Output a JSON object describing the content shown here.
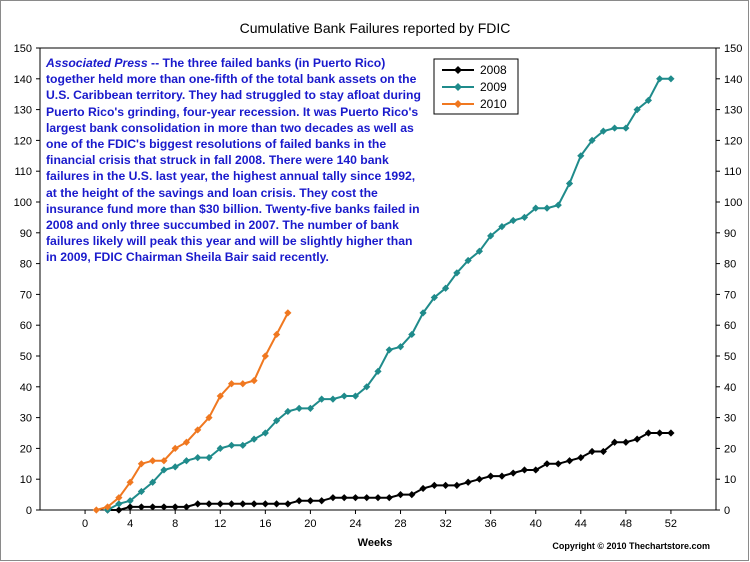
{
  "chart_data": {
    "type": "line",
    "title": "Cumulative Bank Failures reported by FDIC",
    "xlabel": "Weeks",
    "ylabel": "",
    "xlim": [
      -4,
      56
    ],
    "ylim": [
      0,
      150
    ],
    "x_ticks": [
      0,
      4,
      8,
      12,
      16,
      20,
      24,
      28,
      32,
      36,
      40,
      44,
      48,
      52
    ],
    "y_ticks": [
      0,
      10,
      20,
      30,
      40,
      50,
      60,
      70,
      80,
      90,
      100,
      110,
      120,
      130,
      140,
      150
    ],
    "legend_position": "top-center",
    "series": [
      {
        "name": "2008",
        "color": "#000000",
        "x": [
          2,
          3,
          4,
          5,
          6,
          7,
          8,
          9,
          10,
          11,
          12,
          13,
          14,
          15,
          16,
          17,
          18,
          19,
          20,
          21,
          22,
          23,
          24,
          25,
          26,
          27,
          28,
          29,
          30,
          31,
          32,
          33,
          34,
          35,
          36,
          37,
          38,
          39,
          40,
          41,
          42,
          43,
          44,
          45,
          46,
          47,
          48,
          49,
          50,
          51,
          52
        ],
        "values": [
          0,
          0,
          1,
          1,
          1,
          1,
          1,
          1,
          2,
          2,
          2,
          2,
          2,
          2,
          2,
          2,
          2,
          3,
          3,
          3,
          4,
          4,
          4,
          4,
          4,
          4,
          5,
          5,
          7,
          8,
          8,
          8,
          9,
          10,
          11,
          11,
          12,
          13,
          13,
          15,
          15,
          16,
          17,
          19,
          19,
          22,
          22,
          23,
          25,
          25,
          25
        ]
      },
      {
        "name": "2009",
        "color": "#1f8b8b",
        "x": [
          2,
          3,
          4,
          5,
          6,
          7,
          8,
          9,
          10,
          11,
          12,
          13,
          14,
          15,
          16,
          17,
          18,
          19,
          20,
          21,
          22,
          23,
          24,
          25,
          26,
          27,
          28,
          29,
          30,
          31,
          32,
          33,
          34,
          35,
          36,
          37,
          38,
          39,
          40,
          41,
          42,
          43,
          44,
          45,
          46,
          47,
          48,
          49,
          50,
          51,
          52
        ],
        "values": [
          0,
          2,
          3,
          6,
          9,
          13,
          14,
          16,
          17,
          17,
          20,
          21,
          21,
          23,
          25,
          29,
          32,
          33,
          33,
          36,
          36,
          37,
          37,
          40,
          45,
          52,
          53,
          57,
          64,
          69,
          72,
          77,
          81,
          84,
          89,
          92,
          94,
          95,
          98,
          98,
          99,
          106,
          115,
          120,
          123,
          124,
          124,
          130,
          133,
          140,
          140
        ]
      },
      {
        "name": "2010",
        "color": "#f07820",
        "x": [
          1,
          2,
          3,
          4,
          5,
          6,
          7,
          8,
          9,
          10,
          11,
          12,
          13,
          14,
          15,
          16,
          17,
          18
        ],
        "values": [
          0,
          1,
          4,
          9,
          15,
          16,
          16,
          20,
          22,
          26,
          30,
          37,
          41,
          41,
          42,
          50,
          57,
          64
        ]
      }
    ],
    "annotation": {
      "source": "Associated Press",
      "text": " --  The three failed banks (in Puerto Rico) together held more than one-fifth of the total bank assets on the U.S. Caribbean territory. They had struggled to stay afloat during Puerto Rico's grinding, four-year recession.  It was Puerto Rico's largest bank consolidation in more than two decades as well as one of the FDIC's biggest resolutions of failed banks in the financial crisis that struck in fall 2008. There were 140 bank failures in the U.S. last year, the highest annual tally since 1992, at the height of the savings and loan crisis. They cost the insurance fund more than $30 billion. Twenty-five banks failed in 2008 and only three succumbed in 2007.  The number of bank failures likely will peak this year and will be slightly higher than in 2009, FDIC Chairman Sheila Bair said recently."
    },
    "copyright": "Copyright © 2010 Thechartstore.com"
  }
}
